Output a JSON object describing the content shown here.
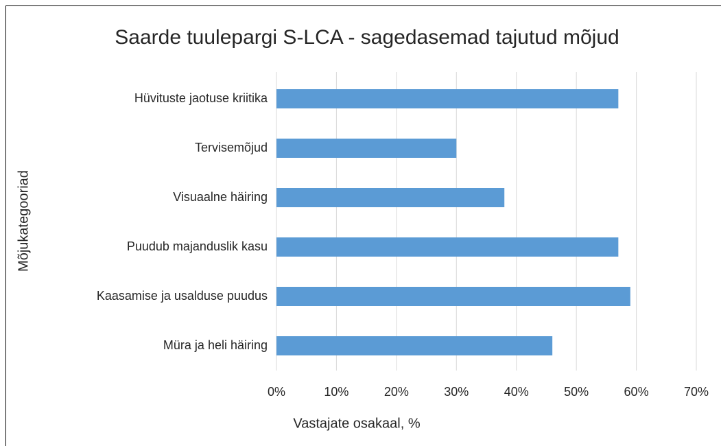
{
  "chart_data": {
    "type": "hbar",
    "title": "Saarde tuulepargi S-LCA - sagedasemad tajutud mõjud",
    "categories": [
      "Hüvituste jaotuse kriitika",
      "Tervisemõjud",
      "Visuaalne häiring",
      "Puudub majanduslik kasu",
      "Kaasamise ja usalduse puudus",
      "Müra ja heli häiring"
    ],
    "values": [
      57,
      30,
      38,
      57,
      59,
      46
    ],
    "color": "#5b9bd5",
    "xlabel": "Vastajate osakaal, %",
    "ylabel": "Mõjukategooriad",
    "xlim": [
      0,
      70
    ],
    "xticks": [
      {
        "value": 0,
        "label": "0%"
      },
      {
        "value": 10,
        "label": "10%"
      },
      {
        "value": 20,
        "label": "20%"
      },
      {
        "value": 30,
        "label": "30%"
      },
      {
        "value": 40,
        "label": "40%"
      },
      {
        "value": 50,
        "label": "50%"
      },
      {
        "value": 60,
        "label": "60%"
      },
      {
        "value": 70,
        "label": "70%"
      }
    ],
    "grid": true
  }
}
